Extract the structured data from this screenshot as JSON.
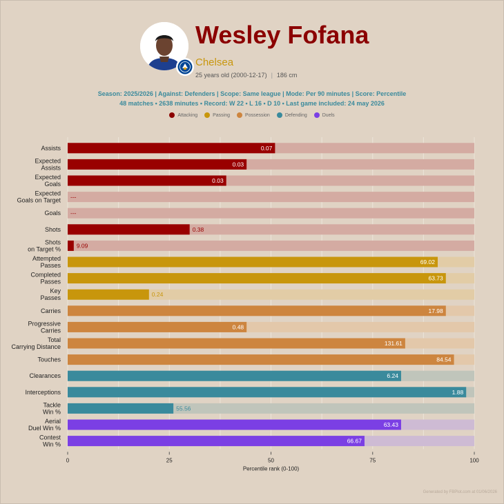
{
  "header": {
    "player_name": "Wesley Fofana",
    "team": "Chelsea",
    "age_text": "25 years old (2000-12-17)",
    "height_text": "186 cm",
    "separator": "|",
    "subtitle_line1": "Season: 2025/2026 | Against: Defenders | Scope: Same league | Mode: Per 90 minutes | Score: Percentile",
    "subtitle_line2": "48 matches • 2638 minutes • Record: W 22 • L 16 • D 10 • Last game included: 24 may 2026"
  },
  "legend": [
    {
      "label": "Attacking",
      "color": "#8b0000"
    },
    {
      "label": "Passing",
      "color": "#c8960c"
    },
    {
      "label": "Possession",
      "color": "#cd853f"
    },
    {
      "label": "Defending",
      "color": "#3a8a9c"
    },
    {
      "label": "Duels",
      "color": "#7b3fe4"
    }
  ],
  "chart_data": {
    "type": "bar",
    "orientation": "horizontal",
    "xlabel": "Percentile rank (0-100)",
    "xlim": [
      0,
      100
    ],
    "xticks": [
      0,
      25,
      50,
      75,
      100
    ],
    "grid": true,
    "background_bar_max": 100,
    "rows": [
      {
        "label": "Assists",
        "percentile": 51,
        "value_label": "0.07",
        "group": "Attacking"
      },
      {
        "label": "Expected\nAssists",
        "percentile": 44,
        "value_label": "0.03",
        "group": "Attacking"
      },
      {
        "label": "Expected\nGoals",
        "percentile": 39,
        "value_label": "0.03",
        "group": "Attacking"
      },
      {
        "label": "Expected\nGoals on Target",
        "percentile": 0,
        "value_label": "---",
        "group": "Attacking"
      },
      {
        "label": "Goals",
        "percentile": 0,
        "value_label": "---",
        "group": "Attacking"
      },
      {
        "label": "Shots",
        "percentile": 30,
        "value_label": "0.38",
        "group": "Attacking"
      },
      {
        "label": "Shots\non Target %",
        "percentile": 1.5,
        "value_label": "9.09",
        "group": "Attacking"
      },
      {
        "label": "Attempted\nPasses",
        "percentile": 91,
        "value_label": "69.02",
        "group": "Passing"
      },
      {
        "label": "Completed\nPasses",
        "percentile": 93,
        "value_label": "63.73",
        "group": "Passing"
      },
      {
        "label": "Key\nPasses",
        "percentile": 20,
        "value_label": "0.24",
        "group": "Passing"
      },
      {
        "label": "Carries",
        "percentile": 93,
        "value_label": "17.98",
        "group": "Possession"
      },
      {
        "label": "Progressive\nCarries",
        "percentile": 44,
        "value_label": "0.48",
        "group": "Possession"
      },
      {
        "label": "Total\nCarrying Distance",
        "percentile": 83,
        "value_label": "131.61",
        "group": "Possession"
      },
      {
        "label": "Touches",
        "percentile": 95,
        "value_label": "84.54",
        "group": "Possession"
      },
      {
        "label": "Clearances",
        "percentile": 82,
        "value_label": "6.24",
        "group": "Defending"
      },
      {
        "label": "Interceptions",
        "percentile": 98,
        "value_label": "1.88",
        "group": "Defending"
      },
      {
        "label": "Tackle\nWin %",
        "percentile": 26,
        "value_label": "55.56",
        "group": "Defending"
      },
      {
        "label": "Aerial\nDuel Win %",
        "percentile": 82,
        "value_label": "63.43",
        "group": "Duels"
      },
      {
        "label": "Contest\nWin %",
        "percentile": 73,
        "value_label": "66.67",
        "group": "Duels"
      }
    ]
  },
  "colors": {
    "Attacking": {
      "bar": "#990000",
      "bg": "#d4aba2"
    },
    "Passing": {
      "bar": "#c8960c",
      "bg": "#e2cca6"
    },
    "Possession": {
      "bar": "#cd853f",
      "bg": "#e3c8aa"
    },
    "Defending": {
      "bar": "#3a8a9c",
      "bg": "#c0c5bb"
    },
    "Duels": {
      "bar": "#7b3fe4",
      "bg": "#cebbd4"
    }
  },
  "footer": "Generated by FBPlot.com at 01/06/2026"
}
